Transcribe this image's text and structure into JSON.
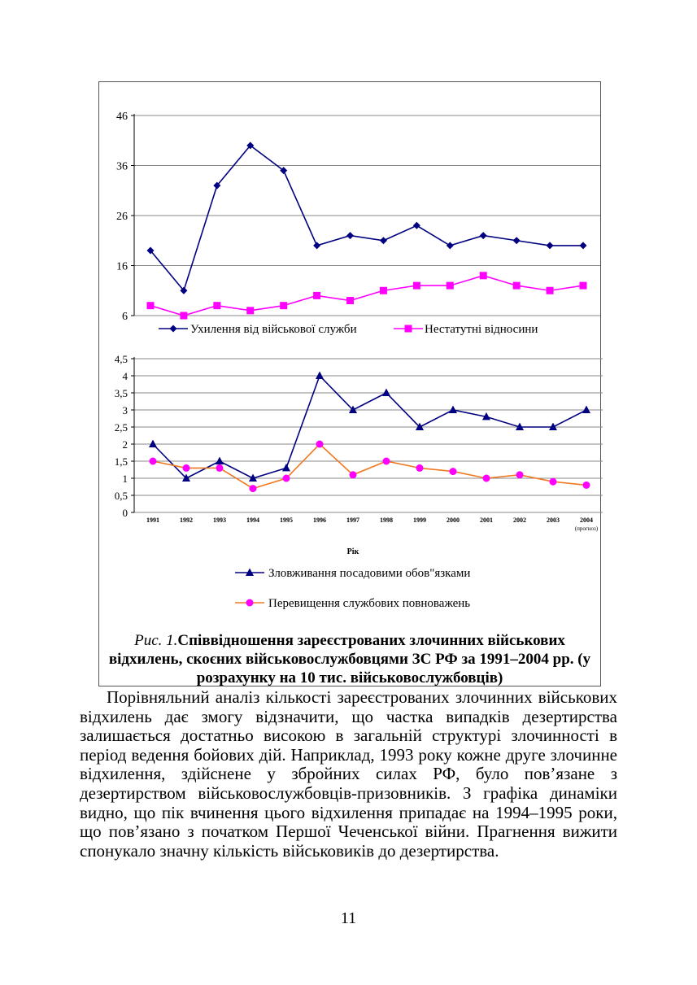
{
  "chart_data": [
    {
      "type": "line",
      "title": "",
      "xlabel": "",
      "ylabel": "",
      "x": [
        1991,
        1992,
        1993,
        1994,
        1995,
        1996,
        1997,
        1998,
        1999,
        2000,
        2001,
        2002,
        2003,
        2004
      ],
      "ylim": [
        6,
        46
      ],
      "yticks": [
        6,
        16,
        26,
        36,
        46
      ],
      "grid": true,
      "legend": "bottom",
      "series": [
        {
          "name": "Ухилення від військової служби",
          "color": "#000080",
          "marker": "diamond",
          "values": [
            19,
            11,
            32,
            40,
            35,
            20,
            22,
            21,
            24,
            20,
            22,
            21,
            20,
            20
          ]
        },
        {
          "name": "Нестатутні відносини",
          "color": "#ff00ff",
          "marker": "square",
          "values": [
            8,
            6,
            8,
            7,
            8,
            10,
            9,
            11,
            12,
            12,
            14,
            12,
            11,
            12
          ]
        }
      ]
    },
    {
      "type": "line",
      "title": "",
      "xlabel": "Рік",
      "ylabel": "",
      "x": [
        1991,
        1992,
        1993,
        1994,
        1995,
        1996,
        1997,
        1998,
        1999,
        2000,
        2001,
        2002,
        2003,
        2004
      ],
      "tick_labels": [
        "1991",
        "1992",
        "1993",
        "1994",
        "1995",
        "1996",
        "1997",
        "1998",
        "1999",
        "2000",
        "2001",
        "2002",
        "2003",
        "2004"
      ],
      "tick_note": "(прогноз)",
      "ylim": [
        0,
        4.5
      ],
      "yticks": [
        "0",
        "0,5",
        "1",
        "1,5",
        "2",
        "2,5",
        "3",
        "3,5",
        "4",
        "4,5"
      ],
      "grid": true,
      "legend": "bottom",
      "series": [
        {
          "name": "Зловживання посадовими обов\"язками",
          "color": "#000080",
          "marker": "triangle",
          "values": [
            2,
            1,
            1.5,
            1,
            1.3,
            4,
            3,
            3.5,
            2.5,
            3,
            2.8,
            2.5,
            2.5,
            3
          ]
        },
        {
          "name": "Перевищення службових повноважень",
          "color": "#f07820",
          "marker_color": "#ff00ff",
          "marker": "circle",
          "values": [
            1.5,
            1.3,
            1.3,
            0.7,
            1,
            2,
            1.1,
            1.5,
            1.3,
            1.2,
            1,
            1.1,
            0.9,
            0.8
          ]
        }
      ]
    }
  ],
  "caption": {
    "label": "Рис. 1.",
    "title": "Співвідношення зареєстрованих злочинних військових відхилень, скоєних військовослужбовцями ЗС РФ за 1991–2004 рр. (у розрахунку на 10 тис. військовослужбовців)"
  },
  "paragraph": "Порівняльний аналіз кількості зареєстрованих злочинних військових відхилень дає змогу відзначити, що частка випадків дезертирства залишається достатньо високою в загальній структурі злочинності в період ведення бойових дій. Наприклад, 1993 року кожне друге злочинне відхилення, здійснене у збройних силах РФ, було пов’язане з дезертирством військовослужбовців-призовників. З графіка динаміки видно, що пік вчинення цього відхилення припадає на 1994–1995 роки, що пов’язано з початком Першої Чеченської війни. Прагнення вижити спонукало значну кількість військовиків до дезертирства.",
  "page_number": "11"
}
